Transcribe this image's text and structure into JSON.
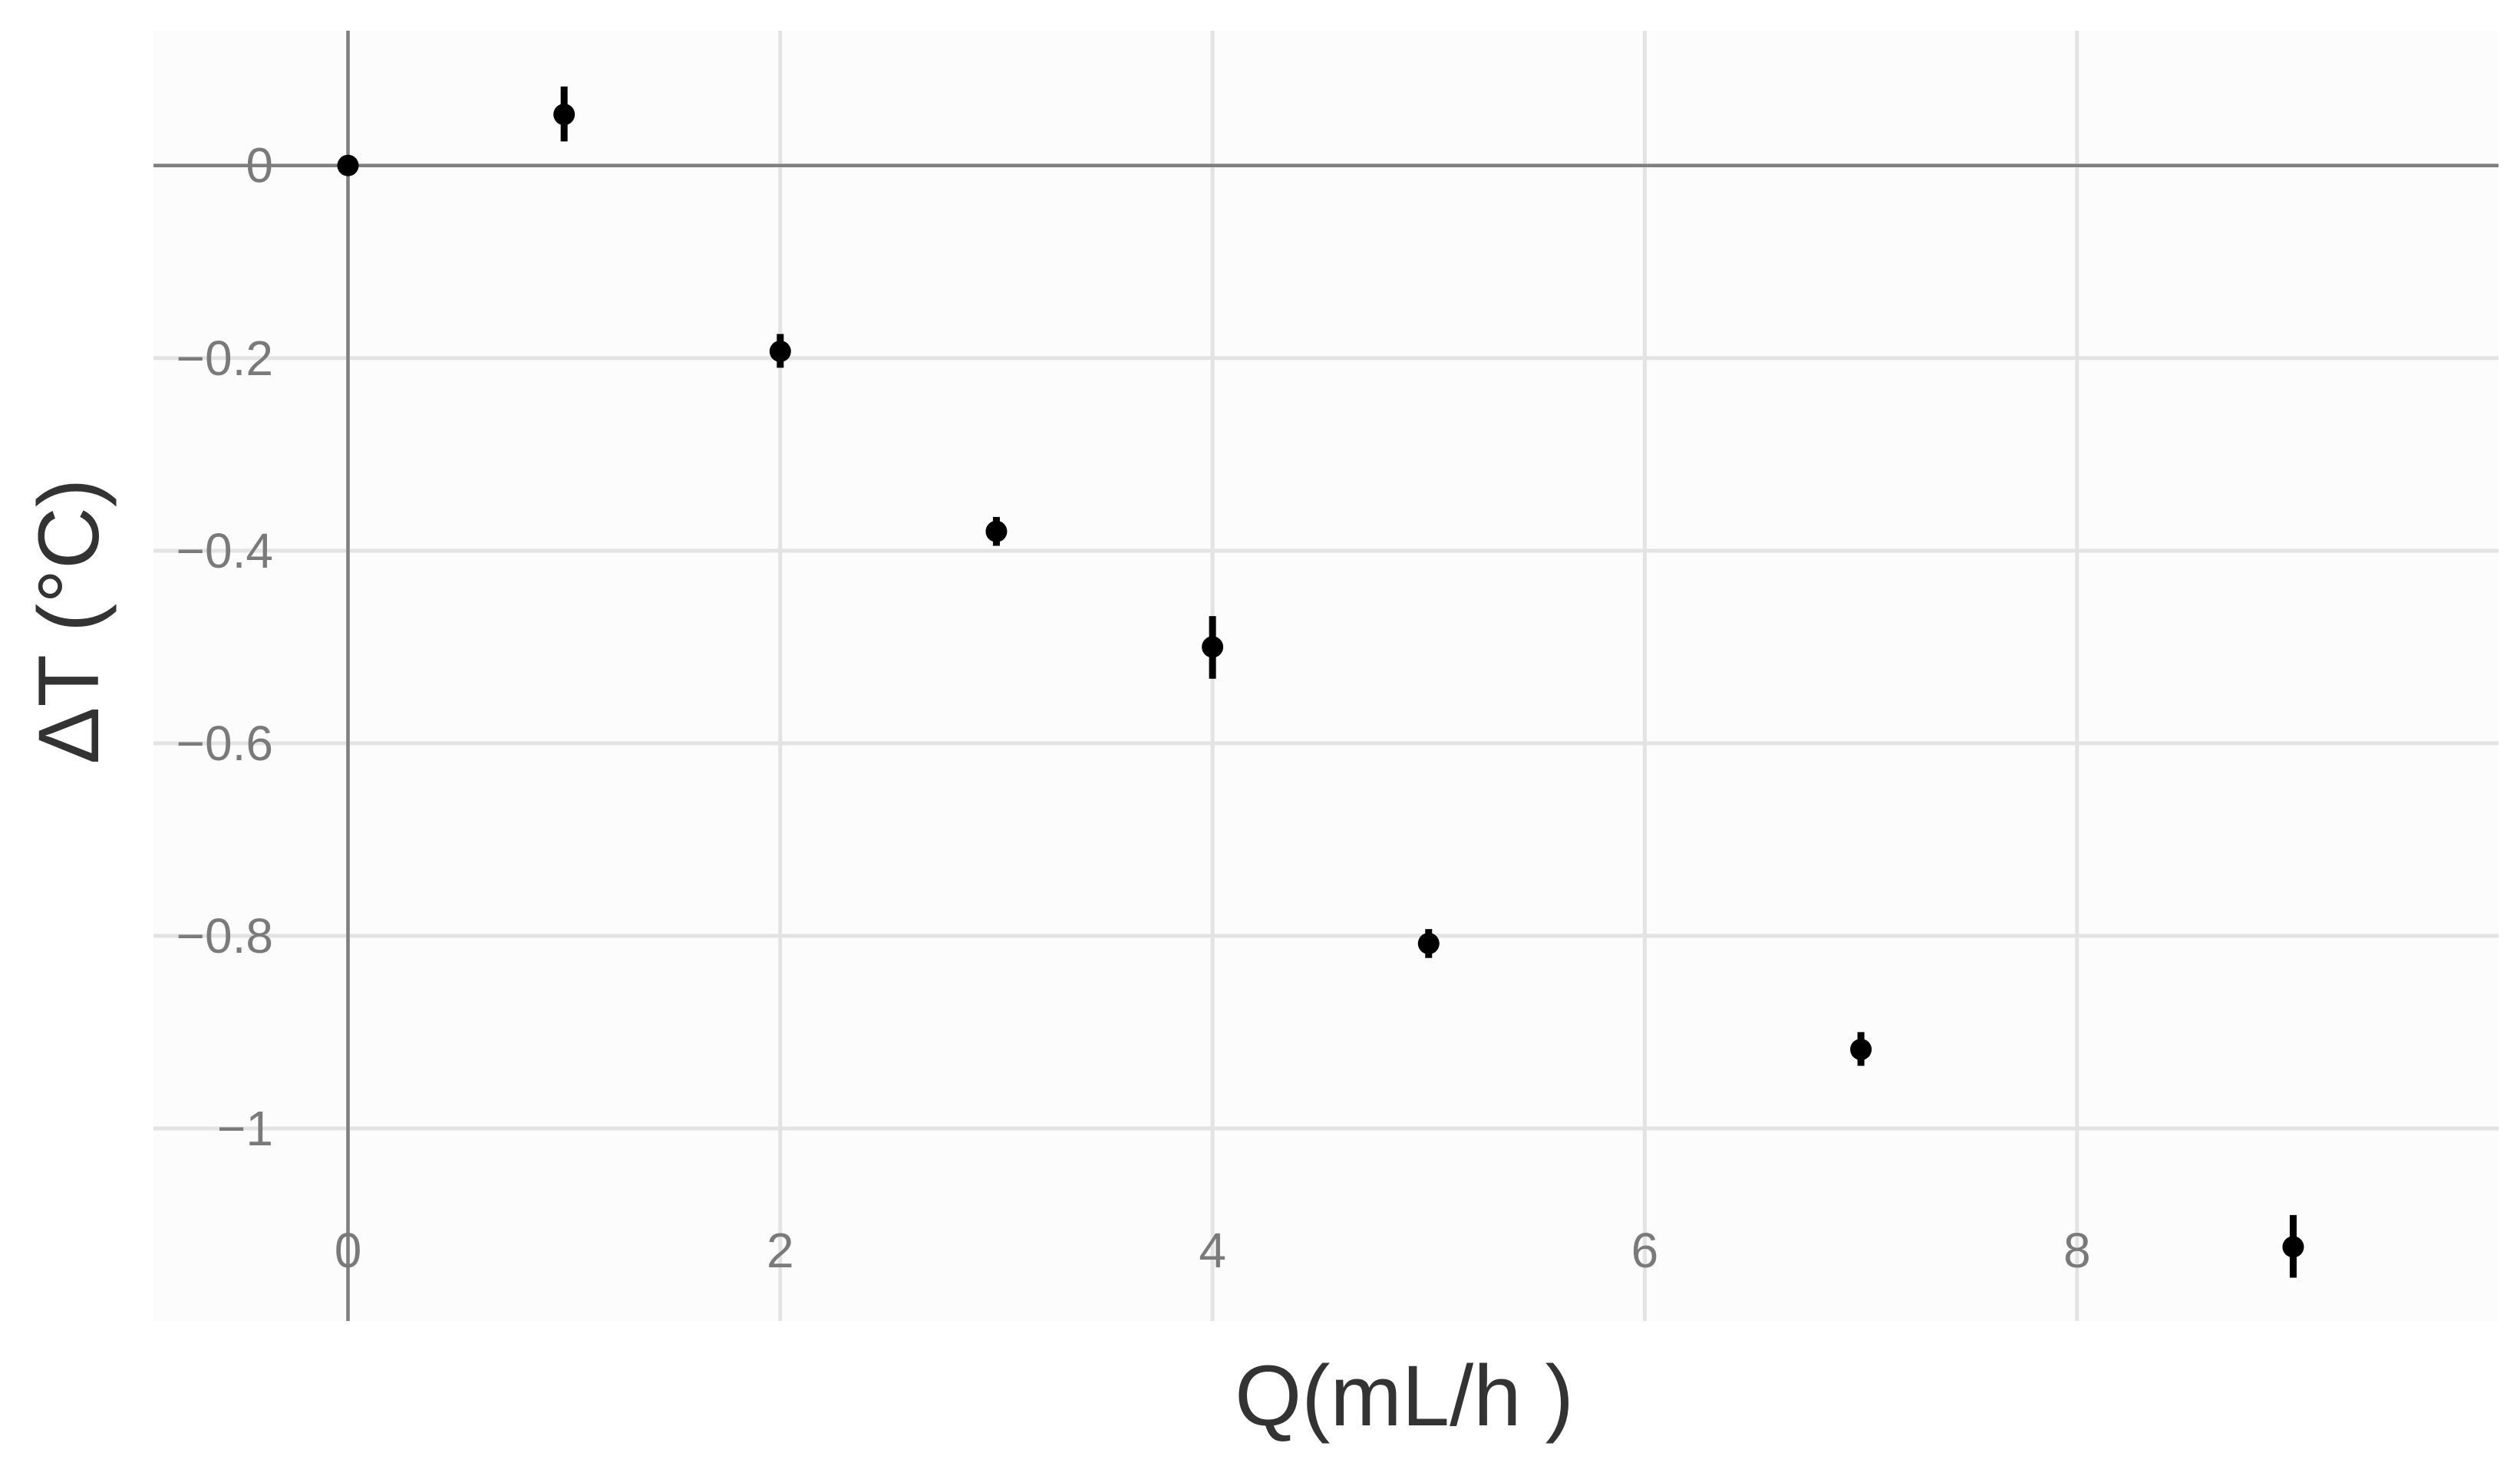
{
  "chart_data": {
    "type": "scatter",
    "xlabel": "Q(mL/h )",
    "ylabel": "ΔT (°C)",
    "xlim": [
      -0.9,
      9.95
    ],
    "ylim": [
      -1.2,
      0.14
    ],
    "grid": true,
    "x_ticks": [
      0,
      2,
      4,
      6,
      8
    ],
    "x_tick_labels": [
      "0",
      "2",
      "4",
      "6",
      "8"
    ],
    "y_ticks": [
      0,
      -0.2,
      -0.4,
      -0.6,
      -0.8,
      -1
    ],
    "y_tick_labels": [
      "0",
      "−0.2",
      "−0.4",
      "−0.6",
      "−0.8",
      "−1"
    ],
    "reference_lines": {
      "x": 0,
      "y": 0
    },
    "points": [
      {
        "x": 0,
        "y": 0.0,
        "ylow": -0.01,
        "yhigh": 0.01
      },
      {
        "x": 1,
        "y": 0.053,
        "ylow": 0.025,
        "yhigh": 0.082
      },
      {
        "x": 2,
        "y": -0.193,
        "ylow": -0.21,
        "yhigh": -0.175
      },
      {
        "x": 3,
        "y": -0.38,
        "ylow": -0.395,
        "yhigh": -0.365
      },
      {
        "x": 4,
        "y": -0.5,
        "ylow": -0.533,
        "yhigh": -0.468
      },
      {
        "x": 5,
        "y": -0.808,
        "ylow": -0.823,
        "yhigh": -0.793
      },
      {
        "x": 7,
        "y": -0.918,
        "ylow": -0.935,
        "yhigh": -0.9
      },
      {
        "x": 9,
        "y": -1.123,
        "ylow": -1.155,
        "yhigh": -1.09
      }
    ],
    "colors": {
      "panel_bg": "#fcfcfc",
      "grid": "#e3e3e3",
      "ref_line": "#7f7f7f",
      "point": "#000000"
    }
  }
}
